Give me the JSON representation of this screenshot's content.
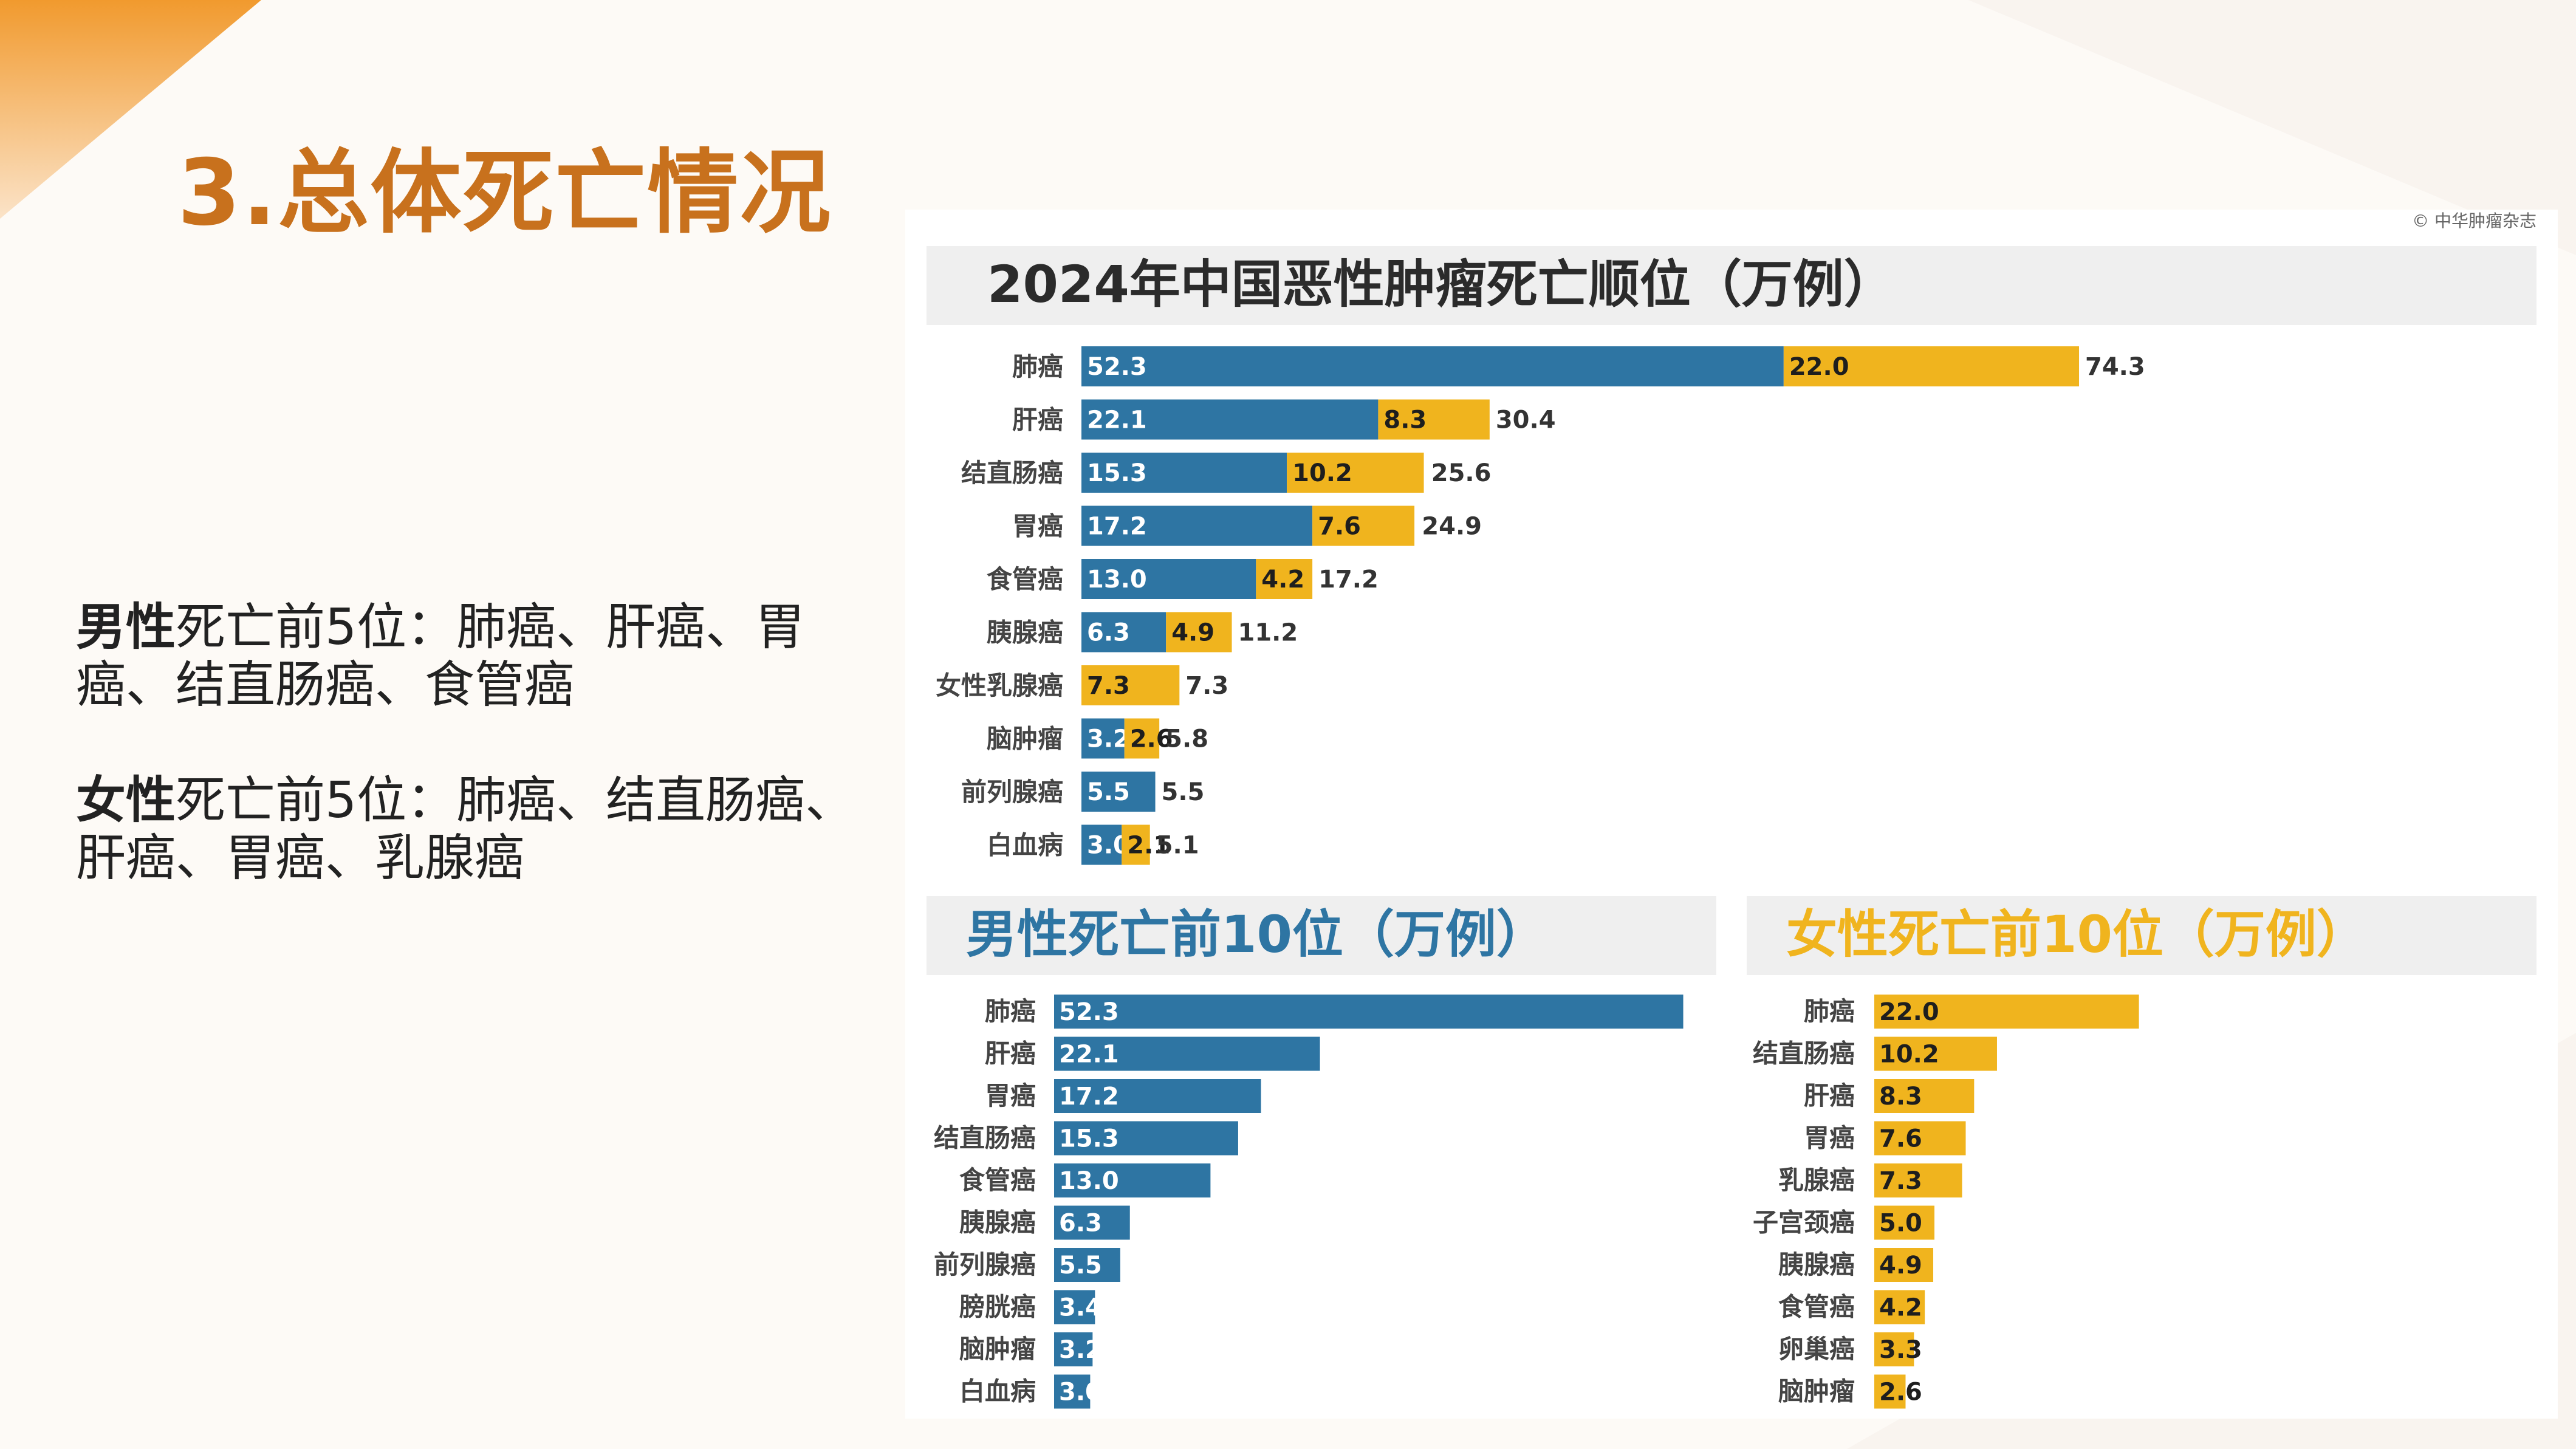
{
  "slide": {
    "title": "3.总体死亡情况",
    "male_summary": {
      "bold": "男性",
      "text": "死亡前5位：肺癌、肝癌、胃癌、结直肠癌、食管癌"
    },
    "female_summary": {
      "bold": "女性",
      "text": "死亡前5位：肺癌、结直肠癌、肝癌、胃癌、乳腺癌"
    }
  },
  "colors": {
    "male": "#2e75a3",
    "female": "#f0b41e",
    "accent": "#c8711d",
    "header_bg": "#efefef"
  },
  "source": "© 中华肿瘤杂志",
  "chart_data": [
    {
      "type": "bar",
      "stacked": true,
      "orientation": "horizontal",
      "title": "2024年中国恶性肿瘤死亡顺位（万例）",
      "categories": [
        "肺癌",
        "肝癌",
        "结直肠癌",
        "胃癌",
        "食管癌",
        "胰腺癌",
        "女性乳腺癌",
        "脑肿瘤",
        "前列腺癌",
        "白血病"
      ],
      "series": [
        {
          "values": [
            52.3,
            22.1,
            15.3,
            17.2,
            13.0,
            6.3,
            null,
            3.2,
            5.5,
            3.0
          ]
        },
        {
          "values": [
            22.0,
            8.3,
            10.2,
            7.6,
            4.2,
            4.9,
            7.3,
            2.6,
            null,
            2.1
          ]
        }
      ],
      "totals": [
        74.3,
        30.4,
        25.6,
        24.9,
        17.2,
        11.2,
        7.3,
        5.8,
        5.5,
        5.1
      ],
      "data_labels": [
        [
          "52.3",
          "22.1",
          "15.3",
          "17.2",
          "13.0",
          "6.3",
          "",
          "3.2",
          "5.5",
          "3.0"
        ],
        [
          "22.0",
          "8.3",
          "10.2",
          "7.6",
          "4.2",
          "4.9",
          "7.3",
          "2.6",
          "",
          "2.1"
        ]
      ],
      "total_labels": [
        "74.3",
        "30.4",
        "25.6",
        "24.9",
        "17.2",
        "11.2",
        "7.3",
        "5.8",
        "5.5",
        "5.1"
      ],
      "grid": false,
      "legend": "none"
    },
    {
      "type": "bar",
      "orientation": "horizontal",
      "title": "男性死亡前10位（万例）",
      "categories": [
        "肺癌",
        "肝癌",
        "胃癌",
        "结直肠癌",
        "食管癌",
        "胰腺癌",
        "前列腺癌",
        "膀胱癌",
        "脑肿瘤",
        "白血病"
      ],
      "values": [
        52.3,
        22.1,
        17.2,
        15.3,
        13.0,
        6.3,
        5.5,
        3.4,
        3.2,
        3.0
      ],
      "data_labels": [
        "52.3",
        "22.1",
        "17.2",
        "15.3",
        "13.0",
        "6.3",
        "5.5",
        "3.4",
        "3.2",
        "3.0"
      ],
      "grid": false,
      "legend": "none"
    },
    {
      "type": "bar",
      "orientation": "horizontal",
      "title": "女性死亡前10位（万例）",
      "categories": [
        "肺癌",
        "结直肠癌",
        "肝癌",
        "胃癌",
        "乳腺癌",
        "子宫颈癌",
        "胰腺癌",
        "食管癌",
        "卵巢癌",
        "脑肿瘤"
      ],
      "values": [
        22.0,
        10.2,
        8.3,
        7.6,
        7.3,
        5.0,
        4.9,
        4.2,
        3.3,
        2.6
      ],
      "data_labels": [
        "22.0",
        "10.2",
        "8.3",
        "7.6",
        "7.3",
        "5.0",
        "4.9",
        "4.2",
        "3.3",
        "2.6"
      ],
      "grid": false,
      "legend": "none"
    }
  ]
}
